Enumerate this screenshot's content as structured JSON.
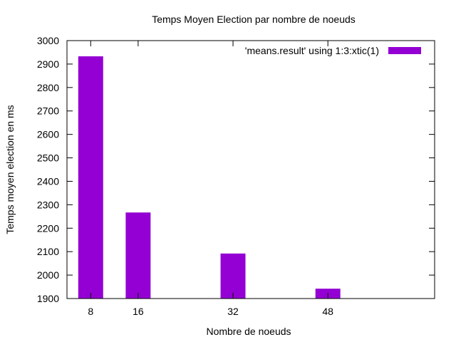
{
  "chart_data": {
    "type": "bar",
    "title": "Temps Moyen Election par nombre de noeuds",
    "xlabel": "Nombre de noeuds",
    "ylabel": "Temps moyen election en ms",
    "x": [
      8,
      16,
      32,
      48
    ],
    "xlim": [
      4,
      66
    ],
    "values": [
      2933,
      2267,
      2092,
      1942
    ],
    "ylim": [
      1900,
      3000
    ],
    "yticks": [
      1900,
      2000,
      2100,
      2200,
      2300,
      2400,
      2500,
      2600,
      2700,
      2800,
      2900,
      3000
    ],
    "xtick_labels": [
      "8",
      "16",
      "32",
      "48"
    ],
    "series": [
      {
        "name": "'means.result' using 1:3:xtic(1)",
        "values": [
          2933,
          2267,
          2092,
          1942
        ],
        "color": "#9400d3"
      }
    ],
    "legend_position": "top-right",
    "grid": false
  }
}
